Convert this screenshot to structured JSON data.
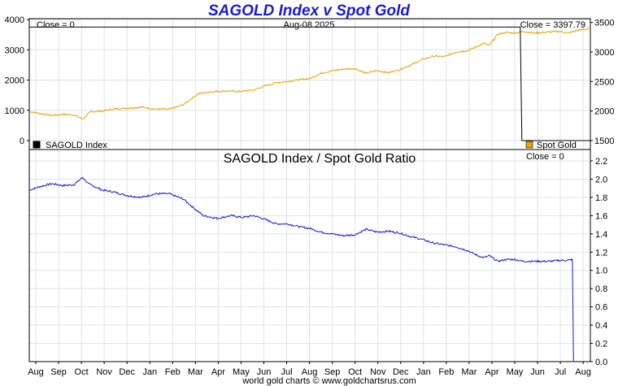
{
  "chart_data": [
    {
      "type": "line",
      "title": "SAGOLD Index v Spot Gold",
      "date_label": "Aug-08  2025",
      "left_readout": "Close = 0",
      "right_readout": "Close = 3397.79",
      "left_axis": {
        "ticks": [
          "0",
          "1000",
          "2000",
          "3000",
          "4000"
        ],
        "ylim": [
          0,
          4000
        ]
      },
      "right_axis": {
        "ticks": [
          "1500",
          "2000",
          "2500",
          "3000",
          "3500"
        ],
        "ylim": [
          1500,
          3550
        ]
      },
      "series": [
        {
          "name": "SAGOLD Index",
          "axis": "left",
          "color": "#000000",
          "points": [
            [
              0,
              3750
            ],
            [
              0.875,
              3750
            ],
            [
              0.878,
              0
            ],
            [
              1.0,
              0
            ]
          ]
        },
        {
          "name": "Spot Gold",
          "axis": "right",
          "color": "#e6a400",
          "points": [
            [
              0.0,
              1993
            ],
            [
              0.02,
              1958
            ],
            [
              0.04,
              1925
            ],
            [
              0.06,
              1945
            ],
            [
              0.08,
              1935
            ],
            [
              0.095,
              1865
            ],
            [
              0.11,
              1990
            ],
            [
              0.13,
              1998
            ],
            [
              0.15,
              2035
            ],
            [
              0.175,
              2050
            ],
            [
              0.2,
              2065
            ],
            [
              0.225,
              2035
            ],
            [
              0.25,
              2030
            ],
            [
              0.275,
              2110
            ],
            [
              0.3,
              2290
            ],
            [
              0.325,
              2330
            ],
            [
              0.35,
              2340
            ],
            [
              0.375,
              2330
            ],
            [
              0.4,
              2355
            ],
            [
              0.42,
              2425
            ],
            [
              0.44,
              2480
            ],
            [
              0.46,
              2500
            ],
            [
              0.48,
              2530
            ],
            [
              0.5,
              2550
            ],
            [
              0.52,
              2640
            ],
            [
              0.54,
              2680
            ],
            [
              0.56,
              2710
            ],
            [
              0.58,
              2720
            ],
            [
              0.6,
              2640
            ],
            [
              0.62,
              2685
            ],
            [
              0.64,
              2650
            ],
            [
              0.66,
              2700
            ],
            [
              0.68,
              2780
            ],
            [
              0.7,
              2870
            ],
            [
              0.72,
              2930
            ],
            [
              0.74,
              2920
            ],
            [
              0.76,
              3000
            ],
            [
              0.78,
              3020
            ],
            [
              0.8,
              3100
            ],
            [
              0.81,
              3150
            ],
            [
              0.82,
              3110
            ],
            [
              0.835,
              3300
            ],
            [
              0.85,
              3330
            ],
            [
              0.865,
              3320
            ],
            [
              0.88,
              3350
            ],
            [
              0.9,
              3320
            ],
            [
              0.915,
              3330
            ],
            [
              0.93,
              3340
            ],
            [
              0.945,
              3350
            ],
            [
              0.96,
              3320
            ],
            [
              0.975,
              3360
            ],
            [
              1.0,
              3400
            ]
          ]
        }
      ],
      "legend": [
        "SAGOLD Index",
        "Spot Gold"
      ],
      "legend_colors": [
        "#000000",
        "#e6a400"
      ]
    },
    {
      "type": "line",
      "title": "SAGOLD Index  /  Spot Gold Ratio",
      "readout": "Close = 0",
      "axis": {
        "ticks": [
          "0.0",
          "0.2",
          "0.4",
          "0.6",
          "0.8",
          "1.0",
          "1.2",
          "1.4",
          "1.6",
          "1.8",
          "2.0",
          "2.2"
        ],
        "ylim": [
          0,
          2.2
        ]
      },
      "series": [
        {
          "name": "Ratio",
          "color": "#1a1ad6",
          "points": [
            [
              0.0,
              1.88
            ],
            [
              0.02,
              1.92
            ],
            [
              0.04,
              1.95
            ],
            [
              0.06,
              1.93
            ],
            [
              0.08,
              1.94
            ],
            [
              0.095,
              2.02
            ],
            [
              0.105,
              1.95
            ],
            [
              0.13,
              1.88
            ],
            [
              0.15,
              1.86
            ],
            [
              0.175,
              1.82
            ],
            [
              0.2,
              1.8
            ],
            [
              0.225,
              1.84
            ],
            [
              0.25,
              1.84
            ],
            [
              0.275,
              1.78
            ],
            [
              0.29,
              1.7
            ],
            [
              0.31,
              1.6
            ],
            [
              0.335,
              1.57
            ],
            [
              0.36,
              1.6
            ],
            [
              0.38,
              1.58
            ],
            [
              0.4,
              1.6
            ],
            [
              0.42,
              1.56
            ],
            [
              0.44,
              1.51
            ],
            [
              0.46,
              1.51
            ],
            [
              0.48,
              1.48
            ],
            [
              0.5,
              1.46
            ],
            [
              0.52,
              1.42
            ],
            [
              0.54,
              1.4
            ],
            [
              0.56,
              1.38
            ],
            [
              0.58,
              1.39
            ],
            [
              0.6,
              1.45
            ],
            [
              0.62,
              1.42
            ],
            [
              0.64,
              1.43
            ],
            [
              0.66,
              1.41
            ],
            [
              0.68,
              1.37
            ],
            [
              0.7,
              1.34
            ],
            [
              0.72,
              1.3
            ],
            [
              0.74,
              1.28
            ],
            [
              0.76,
              1.26
            ],
            [
              0.78,
              1.22
            ],
            [
              0.8,
              1.16
            ],
            [
              0.81,
              1.14
            ],
            [
              0.82,
              1.16
            ],
            [
              0.835,
              1.1
            ],
            [
              0.85,
              1.12
            ],
            [
              0.865,
              1.12
            ],
            [
              0.88,
              1.1
            ],
            [
              0.9,
              1.1
            ],
            [
              0.915,
              1.1
            ],
            [
              0.93,
              1.1
            ],
            [
              0.945,
              1.11
            ],
            [
              0.96,
              1.11
            ],
            [
              0.968,
              1.12
            ],
            [
              0.97,
              0
            ]
          ]
        }
      ]
    }
  ],
  "x_axis": {
    "months": [
      "Aug",
      "Sep",
      "Oct",
      "Nov",
      "Dec",
      "Jan",
      "Feb",
      "Mar",
      "Apr",
      "May",
      "Jun",
      "Jul",
      "Aug",
      "Sep",
      "Oct",
      "Nov",
      "Dec",
      "Jan",
      "Feb",
      "Mar",
      "Apr",
      "May",
      "Jun",
      "Jul",
      "Aug"
    ]
  },
  "footer": "world gold charts © www.goldchartsrus.com",
  "colors": {
    "title": "#1a1ad6",
    "grid": "#dde3ea"
  }
}
